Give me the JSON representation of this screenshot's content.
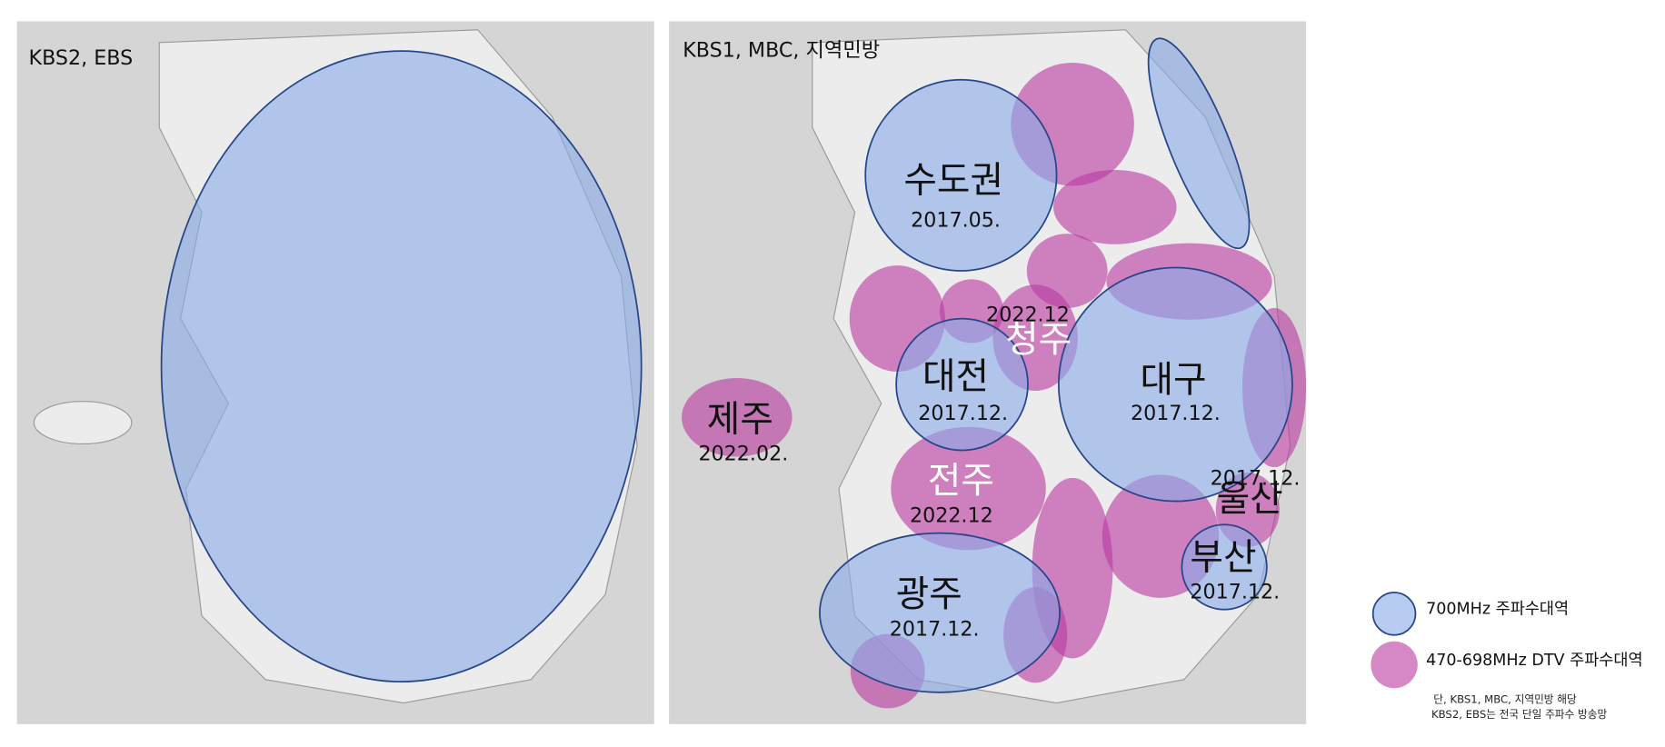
{
  "panels": [
    {
      "title": "KBS2, EBS"
    },
    {
      "title": "KBS1, MBC, 지역민방"
    }
  ],
  "regions": [
    {
      "name": "수도권",
      "date": "2017.05."
    },
    {
      "name": "대전",
      "date": "2017.12."
    },
    {
      "name": "대구",
      "date": "2017.12."
    },
    {
      "name": "광주",
      "date": "2017.12."
    },
    {
      "name": "부산",
      "date": "2017.12."
    },
    {
      "name": "제주",
      "date": "2022.02."
    },
    {
      "name": "청주",
      "date": "2022.12"
    },
    {
      "name": "전주",
      "date": "2022.12"
    },
    {
      "name": "울산",
      "date": "2017.12."
    }
  ],
  "legend": [
    {
      "label": "700MHz 주파수대역"
    },
    {
      "label": "470-698MHz DTV 주파수대역"
    }
  ],
  "note": [
    "단, KBS1, MBC, 지역민방 해당",
    "KBS2, EBS는 전국 단일 주파수 방송망"
  ]
}
